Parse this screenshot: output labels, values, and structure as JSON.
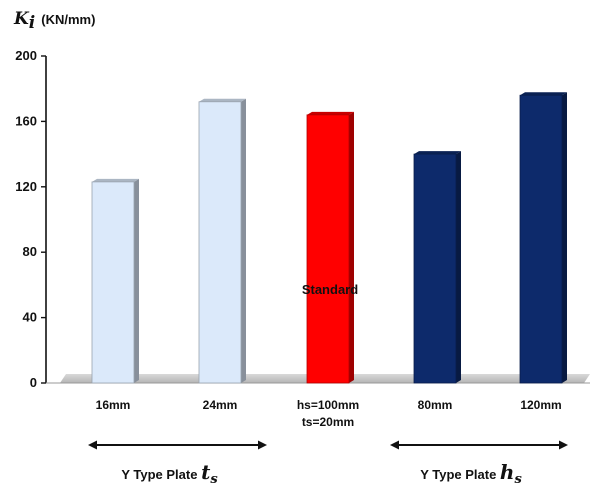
{
  "chart_data": {
    "type": "bar",
    "y_label": {
      "symbol": "K",
      "subscript": "i",
      "unit": "(KN/mm)"
    },
    "ylim": [
      0,
      200
    ],
    "y_ticks": [
      "0",
      "40",
      "80",
      "120",
      "160",
      "200"
    ],
    "categories": [
      "16mm",
      "24mm",
      "hs=100mm\nts=20mm",
      "80mm",
      "120mm"
    ],
    "values": [
      123,
      172,
      164,
      140,
      176
    ],
    "bar_colors": [
      "#dbe9fa",
      "#dbe9fa",
      "#ff0000",
      "#0d2a6b",
      "#0d2a6b"
    ],
    "annotation": {
      "text": "Standard",
      "category_index": 2,
      "y": 57
    },
    "groups": [
      {
        "text": "Y Type Plate",
        "symbol": "t",
        "subscript": "s",
        "from_index": 0,
        "to_index": 1
      },
      {
        "text": "Y Type Plate",
        "symbol": "h",
        "subscript": "s",
        "from_index": 3,
        "to_index": 4
      }
    ],
    "grid": false,
    "legend": "none"
  }
}
